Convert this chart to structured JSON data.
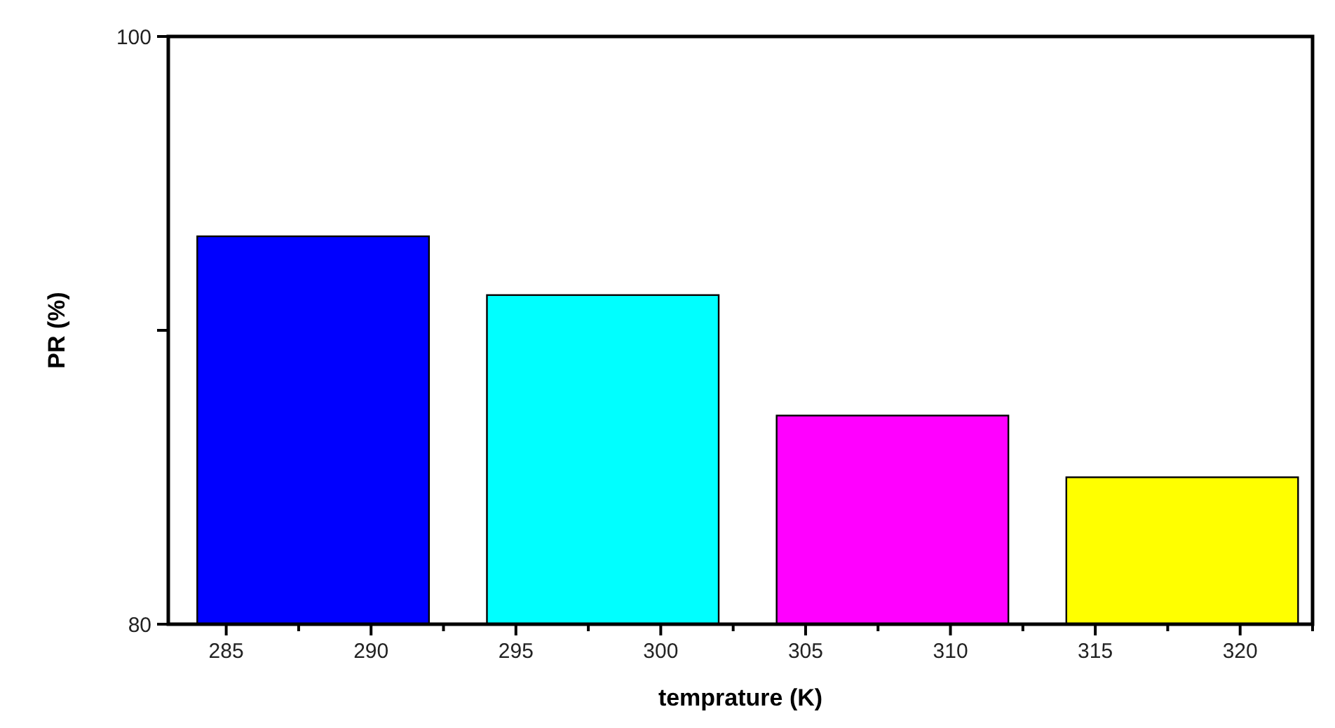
{
  "chart_data": {
    "type": "bar",
    "xlabel": "temprature (K)",
    "ylabel": "PR (%)",
    "x": [
      288,
      298,
      308,
      318
    ],
    "values": [
      93.2,
      91.2,
      87.1,
      85.0
    ],
    "colors": [
      "#0000ff",
      "#00ffff",
      "#ff00ff",
      "#ffff00"
    ],
    "xlim": [
      283,
      322.5
    ],
    "xticks": [
      285,
      {
        "value": 287.5,
        "label": null
      },
      290,
      {
        "value": 292.5,
        "label": null
      },
      295,
      {
        "value": 297.5,
        "label": null
      },
      300,
      {
        "value": 302.5,
        "label": null
      },
      305,
      {
        "value": 307.5,
        "label": null
      },
      310,
      {
        "value": 312.5,
        "label": null
      },
      315,
      {
        "value": 317.5,
        "label": null
      },
      320,
      {
        "value": 322.5,
        "label": null
      }
    ],
    "ylim": [
      80,
      100
    ],
    "yticks": [
      80,
      {
        "value": 90,
        "label": null
      },
      100
    ]
  }
}
